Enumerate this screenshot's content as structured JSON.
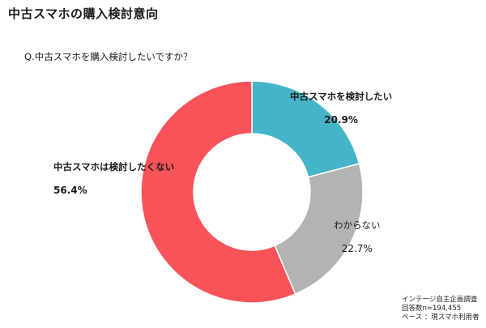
{
  "title": "中古スマホの購入検討意向",
  "question": "Q.中古スマホを購入検討したいですか？",
  "chart_data": {
    "type": "pie",
    "donut": true,
    "slices": [
      {
        "label": "中古スマホを検討したい",
        "value": 20.9,
        "value_label": "20.9%",
        "color": "#45b4c9"
      },
      {
        "label": "わからない",
        "value": 22.7,
        "value_label": "22.7%",
        "color": "#b3b3b3"
      },
      {
        "label": "中古スマホは検討したくない",
        "value": 56.4,
        "value_label": "56.4%",
        "color": "#f75358"
      }
    ]
  },
  "notes": {
    "source": "インテージ自主企画調査",
    "respondents": "回答数n=194,455",
    "base": "ベース ：現スマホ利用者"
  }
}
